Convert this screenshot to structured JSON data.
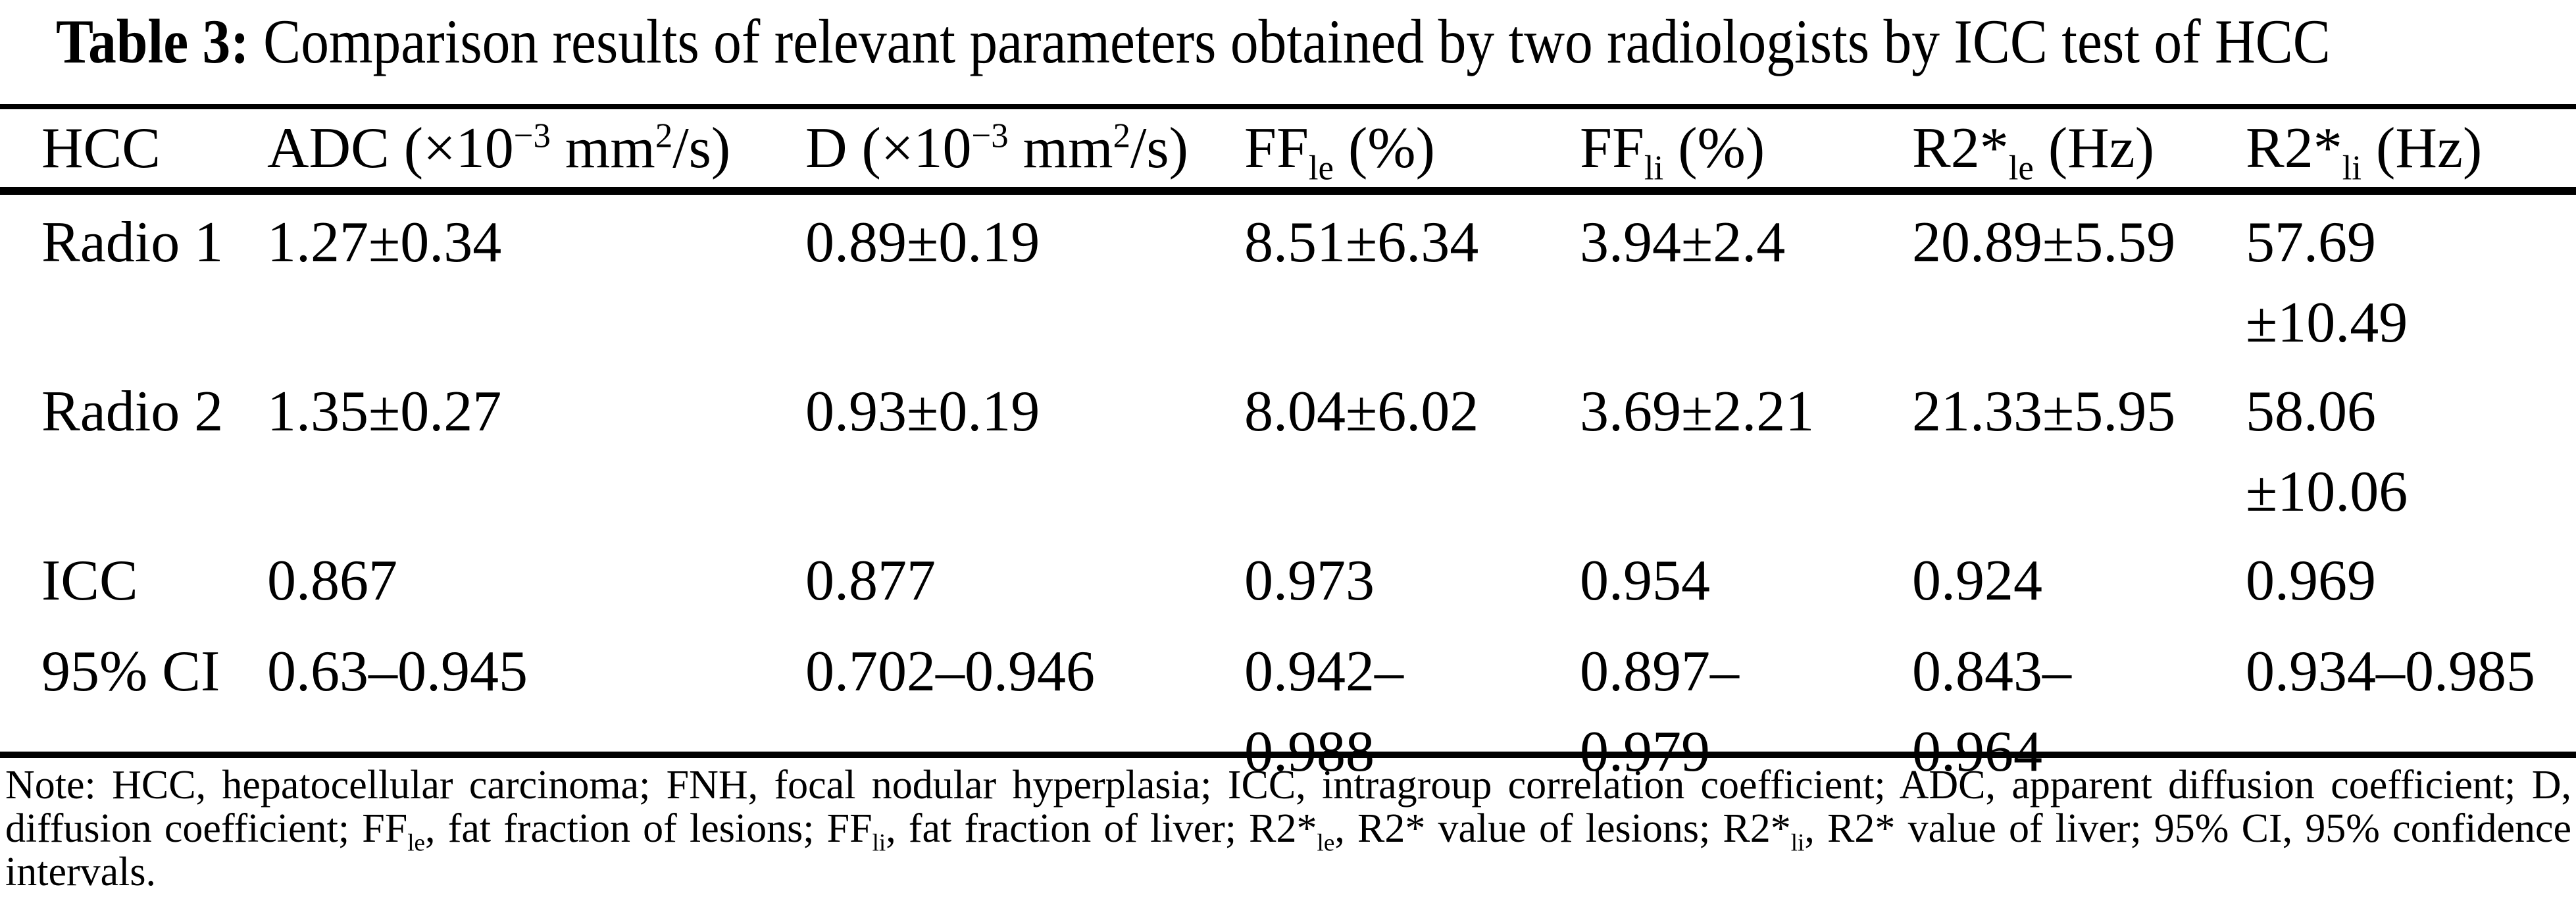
{
  "title": {
    "prefix": "Table 3:",
    "text": " Comparison results of relevant parameters obtained by two radiologists by ICC test of HCC"
  },
  "table": {
    "columns": [
      {
        "label": "HCC"
      },
      {
        "pre": "ADC (×10",
        "sup1": "−3",
        "mid": " mm",
        "sup2": "2",
        "post": "/s)"
      },
      {
        "pre": "D (×10",
        "sup1": "−3",
        "mid": " mm",
        "sup2": "2",
        "post": "/s)"
      },
      {
        "pre": "FF",
        "sub": "le",
        "post": " (%)"
      },
      {
        "pre": "FF",
        "sub": "li",
        "post": " (%)"
      },
      {
        "pre": "R2*",
        "sub": "le",
        "post": " (Hz)"
      },
      {
        "pre": "R2*",
        "sub": "li",
        "post": " (Hz)"
      }
    ],
    "rows": [
      {
        "label": "Radio 1",
        "cells": [
          [
            "1.27±0.34"
          ],
          [
            "0.89±0.19"
          ],
          [
            "8.51±6.34"
          ],
          [
            "3.94±2.4"
          ],
          [
            "20.89±5.59"
          ],
          [
            "57.69",
            "±10.49"
          ]
        ]
      },
      {
        "label": "Radio 2",
        "cells": [
          [
            "1.35±0.27"
          ],
          [
            "0.93±0.19"
          ],
          [
            "8.04±6.02"
          ],
          [
            "3.69±2.21"
          ],
          [
            "21.33±5.95"
          ],
          [
            "58.06",
            "±10.06"
          ]
        ]
      },
      {
        "label": "ICC",
        "cells": [
          [
            "0.867"
          ],
          [
            "0.877"
          ],
          [
            "0.973"
          ],
          [
            "0.954"
          ],
          [
            "0.924"
          ],
          [
            "0.969"
          ]
        ]
      },
      {
        "label": "95% CI",
        "cells": [
          [
            "0.63–0.945"
          ],
          [
            "0.702–0.946"
          ],
          [
            "0.942–",
            "0.988"
          ],
          [
            "0.897–",
            "0.979"
          ],
          [
            "0.843–",
            "0.964"
          ],
          [
            "0.934–0.985"
          ]
        ]
      }
    ]
  },
  "note": {
    "segments": [
      {
        "v": "Note: HCC, hepatocellular carcinoma; FNH, focal nodular hyperplasia; ICC, intragroup correlation coefficient; ADC, apparent diffusion coefficient; D, diffusion coefficient; FF"
      },
      {
        "v": "le"
      },
      {
        "v": ", fat fraction of lesions; FF"
      },
      {
        "v": "li"
      },
      {
        "v": ", fat fraction of liver; R2*"
      },
      {
        "v": "le"
      },
      {
        "v": ", R2* value of lesions; R2*"
      },
      {
        "v": "li"
      },
      {
        "v": ", R2* value of liver; 95% CI, 95% confidence intervals."
      }
    ]
  }
}
